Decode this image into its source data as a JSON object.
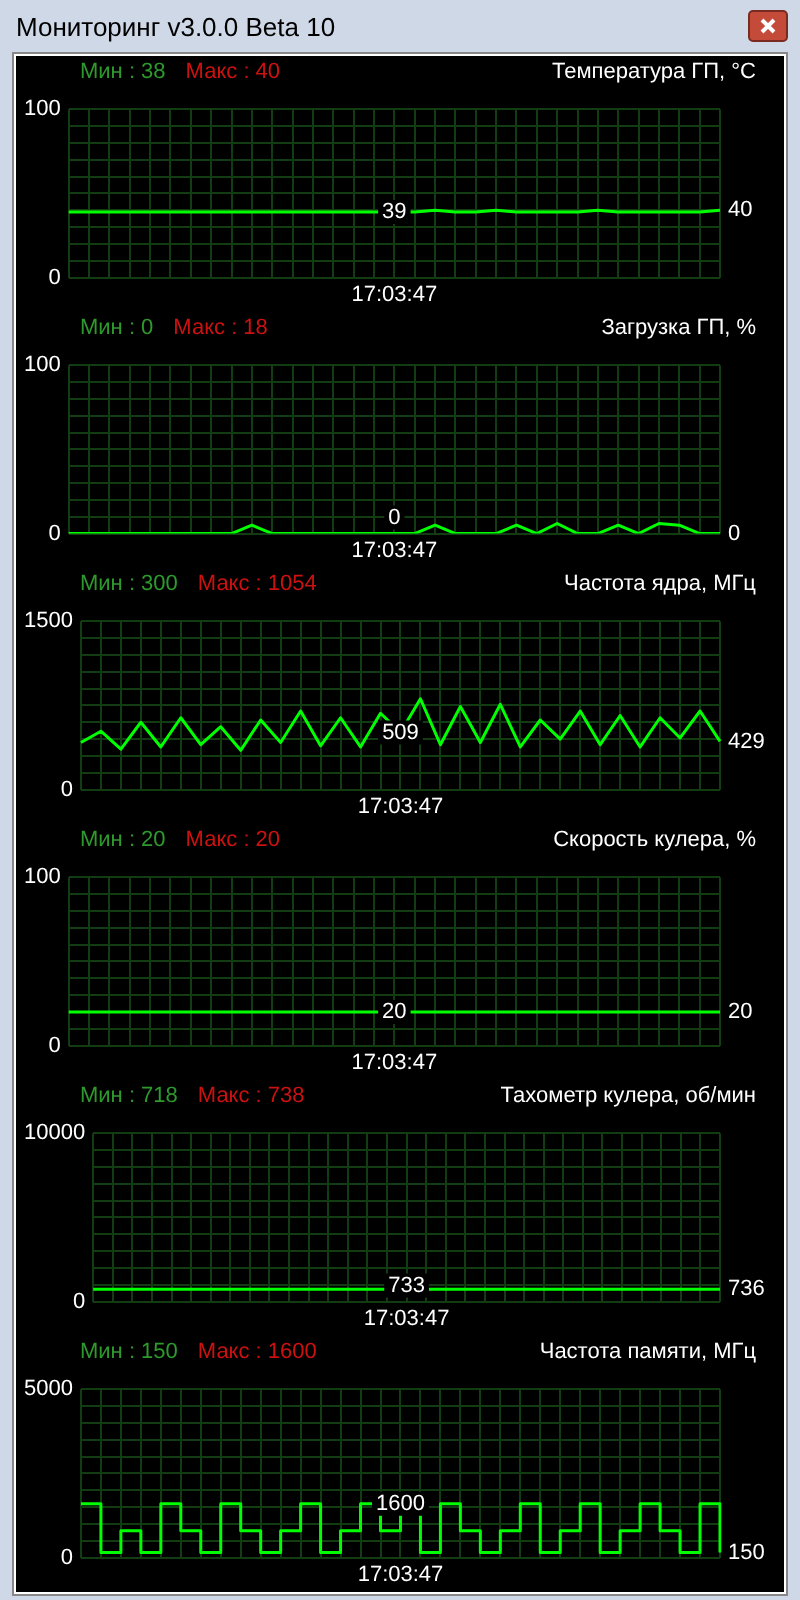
{
  "chart_data": [
    {
      "type": "line",
      "title": "Температура ГП, °C",
      "subtitle": "Мониторинг v3.0.0 Beta 10",
      "categories": [
        null,
        null,
        null,
        null,
        null,
        null,
        null,
        null,
        null,
        null,
        null,
        null,
        null,
        null,
        null,
        null,
        "17:03:47",
        null,
        null,
        null,
        null,
        null,
        null,
        null,
        null,
        null,
        null,
        null,
        null,
        null,
        null,
        null,
        null
      ],
      "series": [
        {
          "color": "#00ff00",
          "values": [
            39,
            39,
            39,
            39,
            39,
            39,
            39,
            39,
            39,
            39,
            39,
            39,
            39,
            39,
            39,
            39,
            39,
            39,
            40,
            39,
            39,
            40,
            39,
            39,
            39,
            39,
            40,
            39,
            39,
            39,
            39,
            39,
            40
          ]
        }
      ],
      "ylim": [
        0,
        100
      ],
      "yticks": [
        0,
        {
          "value": 10,
          "label": null
        },
        {
          "value": 20,
          "label": null
        },
        {
          "value": 30,
          "label": null
        },
        {
          "value": 40,
          "label": null
        },
        {
          "value": 50,
          "label": null
        },
        {
          "value": 60,
          "label": null
        },
        {
          "value": 70,
          "label": null
        },
        {
          "value": 80,
          "label": null
        },
        {
          "value": 90,
          "label": null
        },
        100
      ],
      "grid": true,
      "annotations": [
        "Мин : 38",
        "Макс : 40",
        {
          "text": "39",
          "x": "17:03:47",
          "y": 39
        },
        "40"
      ]
    },
    {
      "type": "line",
      "title": "Загрузка ГП, %",
      "categories": [
        null,
        null,
        null,
        null,
        null,
        null,
        null,
        null,
        null,
        null,
        null,
        null,
        null,
        null,
        null,
        null,
        "17:03:47",
        null,
        null,
        null,
        null,
        null,
        null,
        null,
        null,
        null,
        null,
        null,
        null,
        null,
        null,
        null,
        null
      ],
      "series": [
        {
          "color": "#00ff00",
          "values": [
            0,
            0,
            0,
            0,
            0,
            0,
            0,
            0,
            0,
            5,
            0,
            0,
            0,
            0,
            0,
            0,
            0,
            0,
            5,
            0,
            0,
            0,
            5,
            0,
            6,
            0,
            0,
            5,
            0,
            6,
            5,
            0,
            0
          ]
        }
      ],
      "ylim": [
        0,
        100
      ],
      "yticks": [
        0,
        {
          "value": 10,
          "label": null
        },
        {
          "value": 20,
          "label": null
        },
        {
          "value": 30,
          "label": null
        },
        {
          "value": 40,
          "label": null
        },
        {
          "value": 50,
          "label": null
        },
        {
          "value": 60,
          "label": null
        },
        {
          "value": 70,
          "label": null
        },
        {
          "value": 80,
          "label": null
        },
        {
          "value": 90,
          "label": null
        },
        100
      ],
      "grid": true,
      "annotations": [
        "Мин : 0",
        "Макс : 18",
        {
          "text": "0",
          "x": "17:03:47",
          "y": 0
        },
        "0"
      ]
    },
    {
      "type": "line",
      "title": "Частота ядра, МГц",
      "categories": [
        null,
        null,
        null,
        null,
        null,
        null,
        null,
        null,
        null,
        null,
        null,
        null,
        null,
        null,
        null,
        null,
        "17:03:47",
        null,
        null,
        null,
        null,
        null,
        null,
        null,
        null,
        null,
        null,
        null,
        null,
        null,
        null,
        null,
        null
      ],
      "series": [
        {
          "color": "#00ff00",
          "values": [
            420,
            520,
            360,
            600,
            380,
            640,
            400,
            560,
            350,
            620,
            420,
            700,
            390,
            640,
            380,
            680,
            509,
            809,
            400,
            740,
            420,
            760,
            380,
            620,
            450,
            700,
            400,
            660,
            380,
            640,
            460,
            700,
            429
          ]
        }
      ],
      "ylim": [
        0,
        1500
      ],
      "yticks": [
        0,
        {
          "value": 150,
          "label": null
        },
        {
          "value": 300,
          "label": null
        },
        {
          "value": 450,
          "label": null
        },
        {
          "value": 600,
          "label": null
        },
        {
          "value": 750,
          "label": null
        },
        {
          "value": 900,
          "label": null
        },
        {
          "value": 1050,
          "label": null
        },
        {
          "value": 1200,
          "label": null
        },
        {
          "value": 1350,
          "label": null
        },
        1500
      ],
      "grid": true,
      "annotations": [
        "Мин : 300",
        "Макс : 1054",
        {
          "text": "509",
          "x": "17:03:47",
          "y": 509
        },
        "429"
      ]
    },
    {
      "type": "line",
      "title": "Скорость кулера, %",
      "categories": [
        null,
        null,
        null,
        null,
        null,
        null,
        null,
        null,
        null,
        null,
        null,
        null,
        null,
        null,
        null,
        null,
        "17:03:47",
        null,
        null,
        null,
        null,
        null,
        null,
        null,
        null,
        null,
        null,
        null,
        null,
        null,
        null,
        null,
        null
      ],
      "series": [
        {
          "color": "#00ff00",
          "values": [
            20,
            20,
            20,
            20,
            20,
            20,
            20,
            20,
            20,
            20,
            20,
            20,
            20,
            20,
            20,
            20,
            20,
            20,
            20,
            20,
            20,
            20,
            20,
            20,
            20,
            20,
            20,
            20,
            20,
            20,
            20,
            20,
            20
          ]
        }
      ],
      "ylim": [
        0,
        100
      ],
      "yticks": [
        0,
        {
          "value": 10,
          "label": null
        },
        {
          "value": 30,
          "label": null
        },
        {
          "value": 40,
          "label": null
        },
        {
          "value": 50,
          "label": null
        },
        {
          "value": 60,
          "label": null
        },
        {
          "value": 70,
          "label": null
        },
        {
          "value": 80,
          "label": null
        },
        {
          "value": 90,
          "label": null
        },
        100
      ],
      "grid": true,
      "annotations": [
        "Мин : 20",
        "Макс : 20",
        {
          "text": "20",
          "x": "17:03:47",
          "y": 20
        },
        "20"
      ]
    },
    {
      "type": "line",
      "title": "Тахометр кулера, об/мин",
      "categories": [
        null,
        null,
        null,
        null,
        null,
        null,
        null,
        null,
        null,
        null,
        null,
        null,
        null,
        null,
        null,
        null,
        "17:03:47",
        null,
        null,
        null,
        null,
        null,
        null,
        null,
        null,
        null,
        null,
        null,
        null,
        null,
        null,
        null,
        null
      ],
      "series": [
        {
          "color": "#00ff00",
          "values": [
            733,
            733,
            733,
            733,
            733,
            733,
            733,
            733,
            733,
            733,
            733,
            733,
            733,
            733,
            733,
            733,
            733,
            733,
            733,
            733,
            733,
            733,
            733,
            733,
            733,
            733,
            733,
            733,
            733,
            733,
            733,
            733,
            736
          ]
        }
      ],
      "ylim": [
        0,
        10000
      ],
      "yticks": [
        0,
        {
          "value": 1000,
          "label": null
        },
        {
          "value": 2000,
          "label": null
        },
        {
          "value": 3000,
          "label": null
        },
        {
          "value": 4000,
          "label": null
        },
        {
          "value": 5000,
          "label": null
        },
        {
          "value": 6000,
          "label": null
        },
        {
          "value": 7000,
          "label": null
        },
        {
          "value": 8000,
          "label": null
        },
        {
          "value": 9000,
          "label": null
        },
        10000
      ],
      "grid": true,
      "annotations": [
        "Мин : 718",
        "Макс : 738",
        {
          "text": "733",
          "x": "17:03:47",
          "y": 733
        },
        "736"
      ]
    },
    {
      "type": "step",
      "title": "Частота памяти, МГц",
      "categories": [
        null,
        null,
        null,
        null,
        null,
        null,
        null,
        null,
        null,
        null,
        null,
        null,
        null,
        null,
        null,
        null,
        "17:03:47",
        null,
        null,
        null,
        null,
        null,
        null,
        null,
        null,
        null,
        null,
        null,
        null,
        null,
        null,
        null,
        null
      ],
      "series": [
        {
          "color": "#00ff00",
          "values": [
            1600,
            150,
            800,
            150,
            1600,
            800,
            150,
            1600,
            800,
            150,
            800,
            1600,
            150,
            800,
            1600,
            800,
            1600,
            150,
            1600,
            800,
            150,
            800,
            1600,
            150,
            800,
            1600,
            150,
            800,
            1600,
            800,
            150,
            1600,
            150
          ]
        }
      ],
      "ylim": [
        0,
        5000
      ],
      "yticks": [
        0,
        {
          "value": 500,
          "label": null
        },
        {
          "value": 1000,
          "label": null
        },
        {
          "value": 1500,
          "label": null
        },
        {
          "value": 2000,
          "label": null
        },
        {
          "value": 2500,
          "label": null
        },
        {
          "value": 3000,
          "label": null
        },
        {
          "value": 3500,
          "label": null
        },
        {
          "value": 4000,
          "label": null
        },
        {
          "value": 4500,
          "label": null
        },
        5000
      ],
      "grid": true,
      "annotations": [
        "Мин : 150",
        "Макс : 1600",
        {
          "text": "1600",
          "x": "17:03:47",
          "y": 1600
        },
        "150"
      ]
    }
  ]
}
